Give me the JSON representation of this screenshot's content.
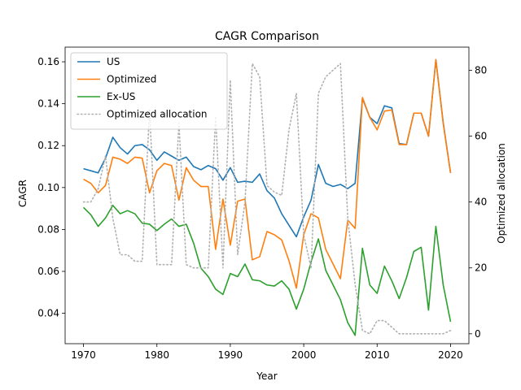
{
  "chart_data": {
    "type": "line",
    "title": "CAGR Comparison",
    "xlabel": "Year",
    "ylabel": "CAGR",
    "y2label": "Optimized allocation",
    "xlim": [
      1967.5,
      2022.5
    ],
    "ylim": [
      0.0255,
      0.167
    ],
    "y2lim": [
      -3,
      87
    ],
    "xticks": [
      1970,
      1980,
      1990,
      2000,
      2010,
      2020
    ],
    "yticks": [
      0.04,
      0.06,
      0.08,
      0.1,
      0.12,
      0.14,
      0.16
    ],
    "ytick_labels": [
      "0.04",
      "0.06",
      "0.08",
      "0.10",
      "0.12",
      "0.14",
      "0.16"
    ],
    "y2ticks": [
      0,
      20,
      40,
      60,
      80
    ],
    "grid": false,
    "legend_position": "top-left",
    "x": [
      1970,
      1971,
      1972,
      1973,
      1974,
      1975,
      1976,
      1977,
      1978,
      1979,
      1980,
      1981,
      1982,
      1983,
      1984,
      1985,
      1986,
      1987,
      1988,
      1989,
      1990,
      1991,
      1992,
      1993,
      1994,
      1995,
      1996,
      1997,
      1998,
      1999,
      2000,
      2001,
      2002,
      2003,
      2004,
      2005,
      2006,
      2007,
      2008,
      2009,
      2010,
      2011,
      2012,
      2013,
      2014,
      2015,
      2016,
      2017,
      2018,
      2019,
      2020
    ],
    "series": [
      {
        "name": "US",
        "color": "#1f77b4",
        "axis": "left",
        "style": "solid",
        "values": [
          0.109,
          0.108,
          0.107,
          0.114,
          0.124,
          0.119,
          0.116,
          0.12,
          0.1205,
          0.118,
          0.113,
          0.117,
          0.115,
          0.113,
          0.1145,
          0.11,
          0.1085,
          0.1105,
          0.109,
          0.1035,
          0.1095,
          0.1025,
          0.103,
          0.1025,
          0.1065,
          0.0985,
          0.095,
          0.0875,
          0.082,
          0.0765,
          0.086,
          0.094,
          0.111,
          0.102,
          0.1005,
          0.1015,
          0.0995,
          0.102,
          0.1425,
          0.1335,
          0.1305,
          0.139,
          0.138,
          0.121,
          0.1205,
          0.1355,
          0.1355,
          0.1245,
          0.161,
          0.131,
          0.107
        ]
      },
      {
        "name": "Optimized",
        "color": "#ff7f0e",
        "axis": "left",
        "style": "solid",
        "values": [
          0.104,
          0.102,
          0.0975,
          0.101,
          0.1145,
          0.1135,
          0.1115,
          0.1145,
          0.114,
          0.0975,
          0.108,
          0.1115,
          0.1105,
          0.094,
          0.1095,
          0.1035,
          0.1005,
          0.1005,
          0.0705,
          0.0945,
          0.0725,
          0.0935,
          0.0945,
          0.0655,
          0.067,
          0.079,
          0.0775,
          0.075,
          0.065,
          0.052,
          0.0775,
          0.0875,
          0.0855,
          0.0705,
          0.0635,
          0.0565,
          0.0845,
          0.0805,
          0.143,
          0.1335,
          0.1275,
          0.1365,
          0.137,
          0.1205,
          0.1205,
          0.1355,
          0.1355,
          0.1245,
          0.161,
          0.1305,
          0.107
        ]
      },
      {
        "name": "Ex-US",
        "color": "#2ca02c",
        "axis": "left",
        "style": "solid",
        "values": [
          0.0905,
          0.087,
          0.0815,
          0.0855,
          0.0915,
          0.0875,
          0.089,
          0.0875,
          0.083,
          0.0825,
          0.0795,
          0.0825,
          0.085,
          0.0815,
          0.0825,
          0.0735,
          0.0615,
          0.0575,
          0.0515,
          0.049,
          0.059,
          0.0575,
          0.0635,
          0.056,
          0.0555,
          0.0535,
          0.053,
          0.0555,
          0.0515,
          0.042,
          0.0515,
          0.0645,
          0.0755,
          0.0605,
          0.0535,
          0.0465,
          0.0355,
          0.0295,
          0.071,
          0.0535,
          0.0495,
          0.0625,
          0.0555,
          0.047,
          0.057,
          0.0695,
          0.0715,
          0.0415,
          0.0815,
          0.0535,
          0.036
        ]
      },
      {
        "name": "Optimized allocation",
        "color": "#b0b0b0",
        "axis": "right",
        "style": "dotted",
        "values": [
          40,
          40,
          44,
          54,
          35,
          24,
          24,
          22,
          22,
          68,
          21,
          21,
          21,
          64,
          21,
          20,
          20,
          20,
          66,
          20,
          77,
          24,
          40,
          82,
          78,
          45,
          43,
          42,
          62,
          73,
          30,
          20,
          73,
          78,
          80,
          82,
          35,
          15,
          1,
          0,
          4,
          4,
          2,
          0,
          0,
          0,
          0,
          0,
          0,
          0,
          1
        ]
      }
    ]
  }
}
